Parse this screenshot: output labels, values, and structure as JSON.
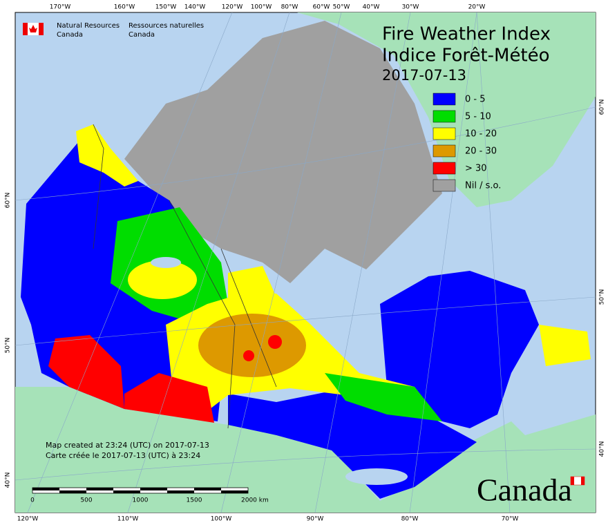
{
  "header": {
    "agency_en": [
      "Natural Resources",
      "Canada"
    ],
    "agency_fr": [
      "Ressources naturelles",
      "Canada"
    ]
  },
  "title": [
    "Fire Weather Index",
    "Indice Forêt-Météo"
  ],
  "date": "2017-07-13",
  "legend": [
    {
      "label": "0 - 5",
      "color": "#0000ff"
    },
    {
      "label": "5 - 10",
      "color": "#00dd00"
    },
    {
      "label": "10 - 20",
      "color": "#ffff00"
    },
    {
      "label": "20 - 30",
      "color": "#dd9900"
    },
    {
      "label": "> 30",
      "color": "#ff0000"
    },
    {
      "label": "Nil / s.o.",
      "color": "#a0a0a0"
    }
  ],
  "graticule": {
    "top": [
      "170°W",
      "160°W",
      "150°W",
      "140°W",
      "120°W",
      "100°W",
      "80°W",
      "60°W",
      "50°W",
      "40°W",
      "30°W",
      "20°W"
    ],
    "bottom": [
      "120°W",
      "110°W",
      "100°W",
      "90°W",
      "80°W",
      "70°W"
    ],
    "left": [
      "60°N",
      "50°N",
      "40°N"
    ],
    "right": [
      "60°N",
      "50°N",
      "40°N"
    ]
  },
  "notes": [
    "Map created at 23:24 (UTC) on 2017-07-13",
    "Carte créée le 2017-07-13 (UTC) à 23:24"
  ],
  "scale_bar": [
    "0",
    "500",
    "1000",
    "1500",
    "2000 km"
  ],
  "wordmark": "Canada"
}
